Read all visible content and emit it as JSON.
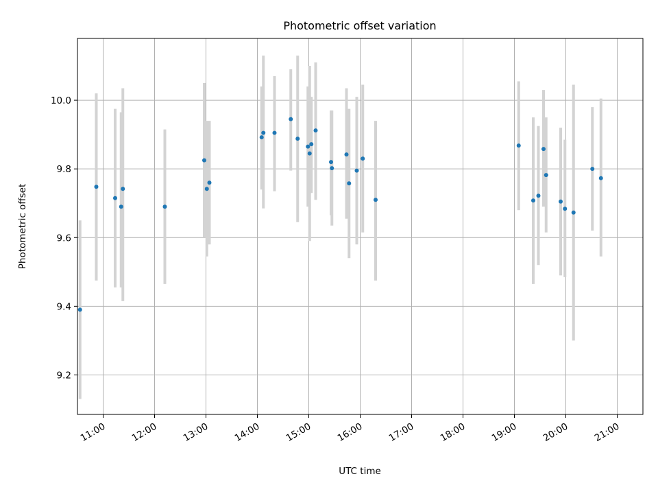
{
  "chart_data": {
    "type": "scatter",
    "title": "Photometric offset variation",
    "xlabel": "UTC time",
    "ylabel": "Photometric offset",
    "x_unit": "UTC time (HH:MM)",
    "xlim": [
      "10:30",
      "21:30"
    ],
    "ylim": [
      9.085,
      10.18
    ],
    "x_ticks": [
      "11:00",
      "12:00",
      "13:00",
      "14:00",
      "15:00",
      "16:00",
      "17:00",
      "18:00",
      "19:00",
      "20:00",
      "21:00"
    ],
    "y_ticks": [
      9.2,
      9.4,
      9.6,
      9.8,
      10.0
    ],
    "y_tick_labels": [
      "9.2",
      "9.4",
      "9.6",
      "9.8",
      "10.0"
    ],
    "grid": true,
    "marker_color": "#1f77b4",
    "errorbar_color": "#d3d3d3",
    "points": [
      {
        "x": "10:33",
        "y": 9.39,
        "ylow": 9.13,
        "yhigh": 9.65
      },
      {
        "x": "10:52",
        "y": 9.748,
        "ylow": 9.475,
        "yhigh": 10.02
      },
      {
        "x": "11:14",
        "y": 9.715,
        "ylow": 9.455,
        "yhigh": 9.975
      },
      {
        "x": "11:21",
        "y": 9.69,
        "ylow": 9.455,
        "yhigh": 9.965
      },
      {
        "x": "11:23",
        "y": 9.742,
        "ylow": 9.415,
        "yhigh": 10.035
      },
      {
        "x": "12:12",
        "y": 9.69,
        "ylow": 9.465,
        "yhigh": 9.915
      },
      {
        "x": "12:58",
        "y": 9.825,
        "ylow": 9.6,
        "yhigh": 10.05
      },
      {
        "x": "13:01",
        "y": 9.742,
        "ylow": 9.545,
        "yhigh": 9.94
      },
      {
        "x": "13:04",
        "y": 9.76,
        "ylow": 9.58,
        "yhigh": 9.94
      },
      {
        "x": "14:05",
        "y": 9.892,
        "ylow": 9.74,
        "yhigh": 10.04
      },
      {
        "x": "14:07",
        "y": 9.905,
        "ylow": 9.685,
        "yhigh": 10.13
      },
      {
        "x": "14:20",
        "y": 9.905,
        "ylow": 9.735,
        "yhigh": 10.07
      },
      {
        "x": "14:39",
        "y": 9.945,
        "ylow": 9.795,
        "yhigh": 10.09
      },
      {
        "x": "14:47",
        "y": 9.888,
        "ylow": 9.645,
        "yhigh": 10.13
      },
      {
        "x": "14:59",
        "y": 9.865,
        "ylow": 9.69,
        "yhigh": 10.04
      },
      {
        "x": "15:01",
        "y": 9.845,
        "ylow": 9.59,
        "yhigh": 10.1
      },
      {
        "x": "15:03",
        "y": 9.872,
        "ylow": 9.73,
        "yhigh": 10.01
      },
      {
        "x": "15:08",
        "y": 9.912,
        "ylow": 9.71,
        "yhigh": 10.11
      },
      {
        "x": "15:26",
        "y": 9.82,
        "ylow": 9.665,
        "yhigh": 9.97
      },
      {
        "x": "15:27",
        "y": 9.802,
        "ylow": 9.635,
        "yhigh": 9.97
      },
      {
        "x": "15:44",
        "y": 9.842,
        "ylow": 9.655,
        "yhigh": 10.035
      },
      {
        "x": "15:47",
        "y": 9.758,
        "ylow": 9.54,
        "yhigh": 9.975
      },
      {
        "x": "15:56",
        "y": 9.795,
        "ylow": 9.58,
        "yhigh": 10.01
      },
      {
        "x": "16:03",
        "y": 9.83,
        "ylow": 9.615,
        "yhigh": 10.045
      },
      {
        "x": "16:18",
        "y": 9.71,
        "ylow": 9.475,
        "yhigh": 9.94
      },
      {
        "x": "19:05",
        "y": 9.868,
        "ylow": 9.68,
        "yhigh": 10.055
      },
      {
        "x": "19:22",
        "y": 9.708,
        "ylow": 9.465,
        "yhigh": 9.95
      },
      {
        "x": "19:28",
        "y": 9.722,
        "ylow": 9.52,
        "yhigh": 9.925
      },
      {
        "x": "19:34",
        "y": 9.858,
        "ylow": 9.69,
        "yhigh": 10.03
      },
      {
        "x": "19:37",
        "y": 9.782,
        "ylow": 9.615,
        "yhigh": 9.95
      },
      {
        "x": "19:54",
        "y": 9.705,
        "ylow": 9.49,
        "yhigh": 9.92
      },
      {
        "x": "19:59",
        "y": 9.684,
        "ylow": 9.485,
        "yhigh": 9.885
      },
      {
        "x": "20:09",
        "y": 9.673,
        "ylow": 9.3,
        "yhigh": 10.045
      },
      {
        "x": "20:31",
        "y": 9.8,
        "ylow": 9.62,
        "yhigh": 9.98
      },
      {
        "x": "20:41",
        "y": 9.773,
        "ylow": 9.545,
        "yhigh": 10.005
      }
    ]
  }
}
